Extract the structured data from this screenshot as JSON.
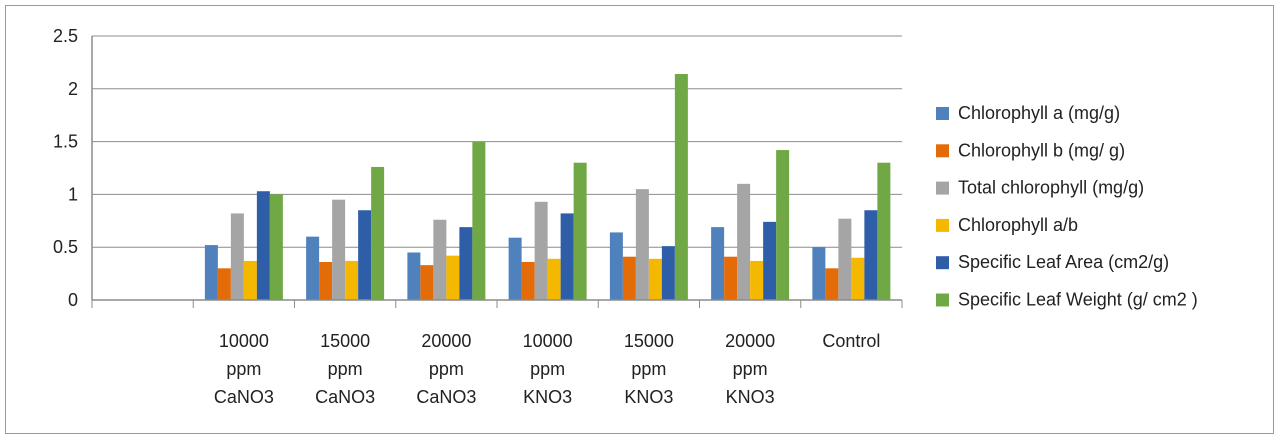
{
  "chart_data": {
    "type": "bar",
    "categories": [
      [
        "10000",
        "ppm",
        "CaNO3"
      ],
      [
        "15000",
        "ppm",
        "CaNO3"
      ],
      [
        "20000",
        "ppm",
        "CaNO3"
      ],
      [
        "10000",
        "ppm",
        "KNO3"
      ],
      [
        "15000",
        "ppm",
        "KNO3"
      ],
      [
        "20000",
        "ppm",
        "KNO3"
      ],
      [
        "Control"
      ]
    ],
    "empty_leading_category": true,
    "series": [
      {
        "name": "Chlorophyll a (mg/g)",
        "color": "#4f81bd",
        "values": [
          0.52,
          0.6,
          0.45,
          0.59,
          0.64,
          0.69,
          0.5
        ]
      },
      {
        "name": "Chlorophyll b (mg/ g)",
        "color": "#e36c09",
        "values": [
          0.3,
          0.36,
          0.33,
          0.36,
          0.41,
          0.41,
          0.3
        ]
      },
      {
        "name": "Total chlorophyll (mg/g)",
        "color": "#a5a5a5",
        "values": [
          0.82,
          0.95,
          0.76,
          0.93,
          1.05,
          1.1,
          0.77
        ]
      },
      {
        "name": "Chlorophyll a/b",
        "color": "#f5b800",
        "values": [
          0.37,
          0.37,
          0.42,
          0.39,
          0.39,
          0.37,
          0.4
        ]
      },
      {
        "name": "Specific Leaf Area (cm2/g)",
        "color": "#2e5ea8",
        "values": [
          1.03,
          0.85,
          0.69,
          0.82,
          0.51,
          0.74,
          0.85
        ]
      },
      {
        "name": "Specific Leaf Weight (g/ cm2 )",
        "color": "#70a845",
        "values": [
          1.0,
          1.26,
          1.5,
          1.3,
          2.14,
          1.42,
          1.3
        ]
      }
    ],
    "y_ticks": [
      "0",
      "0.5",
      "1",
      "1.5",
      "2",
      "2.5"
    ],
    "ylim": [
      0,
      2.5
    ],
    "grid": true,
    "legend_position": "right"
  }
}
